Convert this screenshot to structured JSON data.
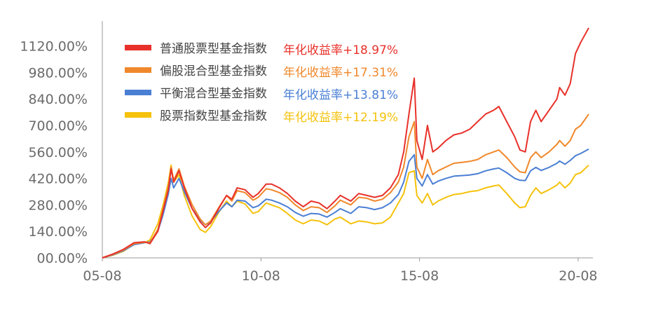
{
  "chart_data": {
    "type": "line",
    "title": "",
    "xlabel": "",
    "ylabel": "",
    "x_ticks": [
      "05-08",
      "10-08",
      "15-08",
      "20-08"
    ],
    "y_ticks": [
      "00.00%",
      "140.00%",
      "280.00%",
      "420.00%",
      "560.00%",
      "700.00%",
      "840.00%",
      "980.00%",
      "1120.00%"
    ],
    "x_range": [
      "2005-08",
      "2020-12"
    ],
    "ylim": [
      0,
      1260
    ],
    "grid": false,
    "legend_position": "top-left",
    "series": [
      {
        "name": "普通股票型基金指数",
        "annual_return": "年化收益率+18.97%",
        "color": "#e8312a",
        "points": [
          [
            "2005-08",
            0
          ],
          [
            "2005-12",
            20
          ],
          [
            "2006-04",
            45
          ],
          [
            "2006-08",
            80
          ],
          [
            "2006-12",
            85
          ],
          [
            "2007-02",
            75
          ],
          [
            "2007-05",
            140
          ],
          [
            "2007-07",
            250
          ],
          [
            "2007-09",
            360
          ],
          [
            "2007-10",
            470
          ],
          [
            "2007-11",
            400
          ],
          [
            "2008-01",
            460
          ],
          [
            "2008-03",
            370
          ],
          [
            "2008-06",
            260
          ],
          [
            "2008-09",
            190
          ],
          [
            "2008-11",
            160
          ],
          [
            "2009-01",
            185
          ],
          [
            "2009-04",
            260
          ],
          [
            "2009-07",
            330
          ],
          [
            "2009-09",
            310
          ],
          [
            "2009-11",
            370
          ],
          [
            "2010-02",
            360
          ],
          [
            "2010-05",
            320
          ],
          [
            "2010-07",
            340
          ],
          [
            "2010-10",
            390
          ],
          [
            "2010-12",
            390
          ],
          [
            "2011-03",
            370
          ],
          [
            "2011-06",
            340
          ],
          [
            "2011-09",
            300
          ],
          [
            "2011-12",
            270
          ],
          [
            "2012-03",
            300
          ],
          [
            "2012-06",
            290
          ],
          [
            "2012-09",
            260
          ],
          [
            "2012-12",
            300
          ],
          [
            "2013-02",
            330
          ],
          [
            "2013-06",
            300
          ],
          [
            "2013-09",
            340
          ],
          [
            "2013-12",
            330
          ],
          [
            "2014-03",
            320
          ],
          [
            "2014-06",
            330
          ],
          [
            "2014-09",
            370
          ],
          [
            "2014-12",
            440
          ],
          [
            "2015-02",
            560
          ],
          [
            "2015-04",
            760
          ],
          [
            "2015-06",
            950
          ],
          [
            "2015-07",
            620
          ],
          [
            "2015-09",
            520
          ],
          [
            "2015-11",
            700
          ],
          [
            "2016-01",
            560
          ],
          [
            "2016-03",
            580
          ],
          [
            "2016-06",
            620
          ],
          [
            "2016-09",
            650
          ],
          [
            "2016-12",
            660
          ],
          [
            "2017-03",
            680
          ],
          [
            "2017-06",
            720
          ],
          [
            "2017-09",
            760
          ],
          [
            "2017-12",
            780
          ],
          [
            "2018-02",
            800
          ],
          [
            "2018-05",
            720
          ],
          [
            "2018-08",
            640
          ],
          [
            "2018-10",
            570
          ],
          [
            "2018-12",
            560
          ],
          [
            "2019-02",
            720
          ],
          [
            "2019-04",
            780
          ],
          [
            "2019-06",
            720
          ],
          [
            "2019-09",
            780
          ],
          [
            "2019-12",
            840
          ],
          [
            "2020-01",
            900
          ],
          [
            "2020-03",
            860
          ],
          [
            "2020-05",
            920
          ],
          [
            "2020-07",
            1080
          ],
          [
            "2020-09",
            1140
          ],
          [
            "2020-12",
            1215
          ]
        ]
      },
      {
        "name": "偏股混合型基金指数",
        "annual_return": "年化收益率+17.31%",
        "color": "#f0882b",
        "points": [
          [
            "2005-08",
            0
          ],
          [
            "2005-12",
            18
          ],
          [
            "2006-04",
            42
          ],
          [
            "2006-08",
            75
          ],
          [
            "2006-12",
            82
          ],
          [
            "2007-02",
            80
          ],
          [
            "2007-05",
            150
          ],
          [
            "2007-07",
            260
          ],
          [
            "2007-09",
            380
          ],
          [
            "2007-10",
            480
          ],
          [
            "2007-11",
            410
          ],
          [
            "2008-01",
            470
          ],
          [
            "2008-03",
            380
          ],
          [
            "2008-06",
            280
          ],
          [
            "2008-09",
            205
          ],
          [
            "2008-11",
            175
          ],
          [
            "2009-01",
            195
          ],
          [
            "2009-04",
            265
          ],
          [
            "2009-07",
            330
          ],
          [
            "2009-09",
            300
          ],
          [
            "2009-11",
            355
          ],
          [
            "2010-02",
            345
          ],
          [
            "2010-05",
            305
          ],
          [
            "2010-07",
            320
          ],
          [
            "2010-10",
            365
          ],
          [
            "2010-12",
            360
          ],
          [
            "2011-03",
            345
          ],
          [
            "2011-06",
            320
          ],
          [
            "2011-09",
            280
          ],
          [
            "2011-12",
            250
          ],
          [
            "2012-03",
            270
          ],
          [
            "2012-06",
            265
          ],
          [
            "2012-09",
            240
          ],
          [
            "2012-12",
            275
          ],
          [
            "2013-02",
            305
          ],
          [
            "2013-06",
            280
          ],
          [
            "2013-09",
            320
          ],
          [
            "2013-12",
            315
          ],
          [
            "2014-03",
            300
          ],
          [
            "2014-06",
            310
          ],
          [
            "2014-09",
            345
          ],
          [
            "2014-12",
            400
          ],
          [
            "2015-02",
            480
          ],
          [
            "2015-04",
            640
          ],
          [
            "2015-06",
            720
          ],
          [
            "2015-07",
            480
          ],
          [
            "2015-09",
            420
          ],
          [
            "2015-11",
            520
          ],
          [
            "2016-01",
            440
          ],
          [
            "2016-03",
            460
          ],
          [
            "2016-06",
            480
          ],
          [
            "2016-09",
            500
          ],
          [
            "2016-12",
            505
          ],
          [
            "2017-03",
            510
          ],
          [
            "2017-06",
            520
          ],
          [
            "2017-09",
            545
          ],
          [
            "2017-12",
            560
          ],
          [
            "2018-02",
            570
          ],
          [
            "2018-05",
            530
          ],
          [
            "2018-08",
            480
          ],
          [
            "2018-10",
            455
          ],
          [
            "2018-12",
            450
          ],
          [
            "2019-02",
            530
          ],
          [
            "2019-04",
            560
          ],
          [
            "2019-06",
            530
          ],
          [
            "2019-09",
            560
          ],
          [
            "2019-12",
            600
          ],
          [
            "2020-01",
            620
          ],
          [
            "2020-03",
            590
          ],
          [
            "2020-05",
            620
          ],
          [
            "2020-07",
            680
          ],
          [
            "2020-09",
            700
          ],
          [
            "2020-12",
            760
          ]
        ]
      },
      {
        "name": "平衡混合型基金指数",
        "annual_return": "年化收益率+13.81%",
        "color": "#4a7fd4",
        "points": [
          [
            "2005-08",
            0
          ],
          [
            "2005-12",
            16
          ],
          [
            "2006-04",
            38
          ],
          [
            "2006-08",
            70
          ],
          [
            "2006-12",
            80
          ],
          [
            "2007-02",
            85
          ],
          [
            "2007-05",
            140
          ],
          [
            "2007-07",
            230
          ],
          [
            "2007-09",
            340
          ],
          [
            "2007-10",
            420
          ],
          [
            "2007-11",
            370
          ],
          [
            "2008-01",
            420
          ],
          [
            "2008-03",
            350
          ],
          [
            "2008-06",
            260
          ],
          [
            "2008-09",
            200
          ],
          [
            "2008-11",
            175
          ],
          [
            "2009-01",
            190
          ],
          [
            "2009-04",
            245
          ],
          [
            "2009-07",
            290
          ],
          [
            "2009-09",
            270
          ],
          [
            "2009-11",
            305
          ],
          [
            "2010-02",
            300
          ],
          [
            "2010-05",
            265
          ],
          [
            "2010-07",
            275
          ],
          [
            "2010-10",
            310
          ],
          [
            "2010-12",
            305
          ],
          [
            "2011-03",
            290
          ],
          [
            "2011-06",
            270
          ],
          [
            "2011-09",
            240
          ],
          [
            "2011-12",
            220
          ],
          [
            "2012-03",
            235
          ],
          [
            "2012-06",
            232
          ],
          [
            "2012-09",
            215
          ],
          [
            "2012-12",
            240
          ],
          [
            "2013-02",
            260
          ],
          [
            "2013-06",
            235
          ],
          [
            "2013-09",
            270
          ],
          [
            "2013-12",
            265
          ],
          [
            "2014-03",
            255
          ],
          [
            "2014-06",
            265
          ],
          [
            "2014-09",
            290
          ],
          [
            "2014-12",
            335
          ],
          [
            "2015-02",
            400
          ],
          [
            "2015-04",
            510
          ],
          [
            "2015-06",
            545
          ],
          [
            "2015-07",
            420
          ],
          [
            "2015-09",
            380
          ],
          [
            "2015-11",
            440
          ],
          [
            "2016-01",
            390
          ],
          [
            "2016-03",
            405
          ],
          [
            "2016-06",
            420
          ],
          [
            "2016-09",
            432
          ],
          [
            "2016-12",
            435
          ],
          [
            "2017-03",
            438
          ],
          [
            "2017-06",
            445
          ],
          [
            "2017-09",
            460
          ],
          [
            "2017-12",
            470
          ],
          [
            "2018-02",
            475
          ],
          [
            "2018-05",
            450
          ],
          [
            "2018-08",
            420
          ],
          [
            "2018-10",
            410
          ],
          [
            "2018-12",
            408
          ],
          [
            "2019-02",
            460
          ],
          [
            "2019-04",
            478
          ],
          [
            "2019-06",
            462
          ],
          [
            "2019-09",
            478
          ],
          [
            "2019-12",
            500
          ],
          [
            "2020-01",
            512
          ],
          [
            "2020-03",
            495
          ],
          [
            "2020-05",
            515
          ],
          [
            "2020-07",
            540
          ],
          [
            "2020-09",
            552
          ],
          [
            "2020-12",
            575
          ]
        ]
      },
      {
        "name": "股票指数型基金指数",
        "annual_return": "年化收益率+12.19%",
        "color": "#f5c20c",
        "points": [
          [
            "2005-08",
            0
          ],
          [
            "2005-12",
            14
          ],
          [
            "2006-04",
            35
          ],
          [
            "2006-08",
            72
          ],
          [
            "2006-12",
            80
          ],
          [
            "2007-02",
            95
          ],
          [
            "2007-05",
            180
          ],
          [
            "2007-07",
            280
          ],
          [
            "2007-09",
            400
          ],
          [
            "2007-10",
            490
          ],
          [
            "2007-11",
            400
          ],
          [
            "2008-01",
            440
          ],
          [
            "2008-03",
            330
          ],
          [
            "2008-06",
            220
          ],
          [
            "2008-09",
            150
          ],
          [
            "2008-11",
            135
          ],
          [
            "2009-01",
            165
          ],
          [
            "2009-04",
            240
          ],
          [
            "2009-07",
            300
          ],
          [
            "2009-09",
            270
          ],
          [
            "2009-11",
            300
          ],
          [
            "2010-02",
            285
          ],
          [
            "2010-05",
            235
          ],
          [
            "2010-07",
            245
          ],
          [
            "2010-10",
            290
          ],
          [
            "2010-12",
            280
          ],
          [
            "2011-03",
            265
          ],
          [
            "2011-06",
            235
          ],
          [
            "2011-09",
            200
          ],
          [
            "2011-12",
            180
          ],
          [
            "2012-03",
            200
          ],
          [
            "2012-06",
            195
          ],
          [
            "2012-09",
            175
          ],
          [
            "2012-12",
            205
          ],
          [
            "2013-02",
            215
          ],
          [
            "2013-06",
            180
          ],
          [
            "2013-09",
            195
          ],
          [
            "2013-12",
            190
          ],
          [
            "2014-03",
            180
          ],
          [
            "2014-06",
            185
          ],
          [
            "2014-09",
            215
          ],
          [
            "2014-12",
            290
          ],
          [
            "2015-02",
            340
          ],
          [
            "2015-04",
            450
          ],
          [
            "2015-06",
            460
          ],
          [
            "2015-07",
            330
          ],
          [
            "2015-09",
            290
          ],
          [
            "2015-11",
            340
          ],
          [
            "2016-01",
            280
          ],
          [
            "2016-03",
            300
          ],
          [
            "2016-06",
            320
          ],
          [
            "2016-09",
            335
          ],
          [
            "2016-12",
            340
          ],
          [
            "2017-03",
            350
          ],
          [
            "2017-06",
            355
          ],
          [
            "2017-09",
            370
          ],
          [
            "2017-12",
            380
          ],
          [
            "2018-02",
            385
          ],
          [
            "2018-05",
            340
          ],
          [
            "2018-08",
            290
          ],
          [
            "2018-10",
            265
          ],
          [
            "2018-12",
            270
          ],
          [
            "2019-02",
            330
          ],
          [
            "2019-04",
            370
          ],
          [
            "2019-06",
            340
          ],
          [
            "2019-09",
            360
          ],
          [
            "2019-12",
            385
          ],
          [
            "2020-01",
            400
          ],
          [
            "2020-03",
            370
          ],
          [
            "2020-05",
            395
          ],
          [
            "2020-07",
            440
          ],
          [
            "2020-09",
            450
          ],
          [
            "2020-12",
            490
          ]
        ]
      }
    ]
  }
}
